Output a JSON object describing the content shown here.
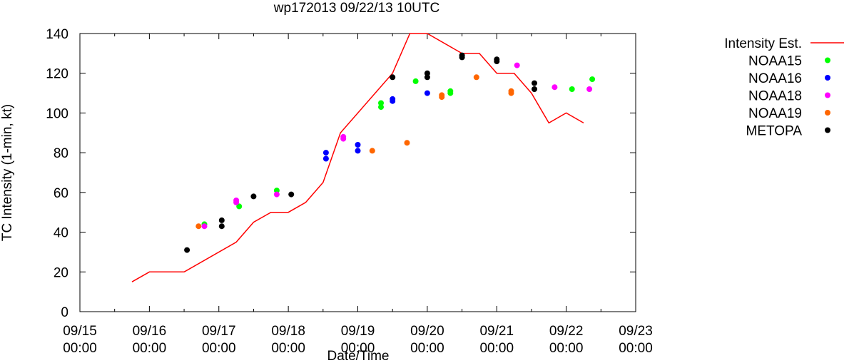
{
  "chart_data": {
    "type": "scatter",
    "title": "wp172013 09/22/13 10UTC",
    "xlabel": "Date/Time",
    "ylabel": "TC Intensity (1-min, kt)",
    "ylim": [
      0,
      140
    ],
    "yticks": [
      0,
      20,
      40,
      60,
      80,
      100,
      120,
      140
    ],
    "xlim": [
      "2013-09-15T00:00",
      "2013-09-23T00:00"
    ],
    "xticks": [
      {
        "value": "2013-09-15T00:00",
        "line1": "09/15",
        "line2": "00:00"
      },
      {
        "value": "2013-09-16T00:00",
        "line1": "09/16",
        "line2": "00:00"
      },
      {
        "value": "2013-09-17T00:00",
        "line1": "09/17",
        "line2": "00:00"
      },
      {
        "value": "2013-09-18T00:00",
        "line1": "09/18",
        "line2": "00:00"
      },
      {
        "value": "2013-09-19T00:00",
        "line1": "09/19",
        "line2": "00:00"
      },
      {
        "value": "2013-09-20T00:00",
        "line1": "09/20",
        "line2": "00:00"
      },
      {
        "value": "2013-09-21T00:00",
        "line1": "09/21",
        "line2": "00:00"
      },
      {
        "value": "2013-09-22T00:00",
        "line1": "09/22",
        "line2": "00:00"
      },
      {
        "value": "2013-09-23T00:00",
        "line1": "09/23",
        "line2": "00:00"
      }
    ],
    "grid": false,
    "legend_position": "outside-right",
    "line_series": {
      "name": "Intensity Est.",
      "color": "#ff0000",
      "points": [
        [
          "2013-09-15T18:00",
          15
        ],
        [
          "2013-09-16T00:00",
          20
        ],
        [
          "2013-09-16T12:00",
          20
        ],
        [
          "2013-09-17T06:00",
          35
        ],
        [
          "2013-09-17T12:00",
          45
        ],
        [
          "2013-09-17T18:00",
          50
        ],
        [
          "2013-09-18T00:00",
          50
        ],
        [
          "2013-09-18T06:00",
          55
        ],
        [
          "2013-09-18T12:00",
          65
        ],
        [
          "2013-09-18T18:00",
          90
        ],
        [
          "2013-09-19T12:00",
          120
        ],
        [
          "2013-09-19T12:00",
          120
        ],
        [
          "2013-09-19T18:00",
          140
        ],
        [
          "2013-09-20T00:00",
          140
        ],
        [
          "2013-09-20T12:00",
          130
        ],
        [
          "2013-09-20T18:00",
          130
        ],
        [
          "2013-09-21T00:00",
          120
        ],
        [
          "2013-09-21T06:00",
          120
        ],
        [
          "2013-09-21T12:00",
          110
        ],
        [
          "2013-09-21T18:00",
          95
        ],
        [
          "2013-09-22T00:00",
          100
        ],
        [
          "2013-09-22T06:00",
          95
        ]
      ]
    },
    "series": [
      {
        "name": "NOAA15",
        "color": "#00ff00",
        "points": [
          [
            "2013-09-16T19:00",
            44
          ],
          [
            "2013-09-17T07:00",
            53
          ],
          [
            "2013-09-17T20:00",
            61
          ],
          [
            "2013-09-19T08:00",
            103
          ],
          [
            "2013-09-19T08:00",
            105
          ],
          [
            "2013-09-19T20:00",
            116
          ],
          [
            "2013-09-20T08:00",
            110
          ],
          [
            "2013-09-20T08:00",
            111
          ],
          [
            "2013-09-22T02:00",
            112
          ],
          [
            "2013-09-22T09:00",
            117
          ]
        ]
      },
      {
        "name": "NOAA16",
        "color": "#0000ff",
        "points": [
          [
            "2013-09-18T13:00",
            77
          ],
          [
            "2013-09-18T13:00",
            80
          ],
          [
            "2013-09-19T00:00",
            81
          ],
          [
            "2013-09-19T00:00",
            84
          ],
          [
            "2013-09-19T12:00",
            106
          ],
          [
            "2013-09-19T12:00",
            107
          ],
          [
            "2013-09-20T00:00",
            110
          ]
        ]
      },
      {
        "name": "NOAA18",
        "color": "#ff00ff",
        "points": [
          [
            "2013-09-16T19:00",
            43
          ],
          [
            "2013-09-17T06:00",
            55
          ],
          [
            "2013-09-17T06:00",
            56
          ],
          [
            "2013-09-17T20:00",
            59
          ],
          [
            "2013-09-18T19:00",
            87
          ],
          [
            "2013-09-18T19:00",
            88
          ],
          [
            "2013-09-21T07:00",
            124
          ],
          [
            "2013-09-21T20:00",
            113
          ],
          [
            "2013-09-22T08:00",
            112
          ]
        ]
      },
      {
        "name": "NOAA19",
        "color": "#ff6600",
        "points": [
          [
            "2013-09-16T17:00",
            43
          ],
          [
            "2013-09-19T05:00",
            81
          ],
          [
            "2013-09-19T17:00",
            85
          ],
          [
            "2013-09-20T05:00",
            108
          ],
          [
            "2013-09-20T05:00",
            109
          ],
          [
            "2013-09-20T17:00",
            118
          ],
          [
            "2013-09-21T05:00",
            110
          ],
          [
            "2013-09-21T05:00",
            111
          ]
        ]
      },
      {
        "name": "METOPA",
        "color": "#000000",
        "points": [
          [
            "2013-09-16T13:00",
            31
          ],
          [
            "2013-09-17T01:00",
            43
          ],
          [
            "2013-09-17T01:00",
            46
          ],
          [
            "2013-09-17T12:00",
            58
          ],
          [
            "2013-09-18T01:00",
            59
          ],
          [
            "2013-09-19T12:00",
            118
          ],
          [
            "2013-09-20T00:00",
            118
          ],
          [
            "2013-09-20T00:00",
            120
          ],
          [
            "2013-09-20T12:00",
            128
          ],
          [
            "2013-09-20T12:00",
            129
          ],
          [
            "2013-09-21T00:00",
            126
          ],
          [
            "2013-09-21T00:00",
            127
          ],
          [
            "2013-09-21T13:00",
            112
          ],
          [
            "2013-09-21T13:00",
            115
          ]
        ]
      }
    ]
  }
}
